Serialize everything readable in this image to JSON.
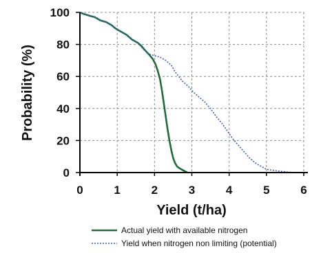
{
  "chart_data": {
    "type": "line",
    "title": "",
    "xlabel": "Yield (t/ha)",
    "ylabel": "Probability (%)",
    "xlim": [
      0,
      6
    ],
    "ylim": [
      0,
      100
    ],
    "xticks": [
      0,
      1,
      2,
      3,
      4,
      5,
      6
    ],
    "yticks": [
      0,
      20,
      40,
      60,
      80,
      100
    ],
    "grid": true,
    "legend_position": "bottom",
    "series": [
      {
        "name": "Actual yield with available nitrogen",
        "color": "#1f6b3a",
        "style": "solid",
        "x": [
          0.0,
          0.1,
          0.25,
          0.4,
          0.55,
          0.7,
          0.85,
          0.95,
          1.1,
          1.25,
          1.4,
          1.55,
          1.65,
          1.72,
          1.8,
          1.88,
          1.95,
          2.02,
          2.08,
          2.15,
          2.2,
          2.25,
          2.3,
          2.35,
          2.4,
          2.45,
          2.5,
          2.55,
          2.6,
          2.65,
          2.72,
          2.8,
          2.88
        ],
        "y": [
          100,
          99,
          98,
          97,
          95,
          94,
          92,
          90,
          88,
          86,
          83,
          81,
          79,
          77,
          75,
          73,
          71,
          68,
          64,
          58,
          51,
          43,
          35,
          27,
          20,
          14,
          9,
          6,
          4,
          3,
          2,
          1,
          0
        ]
      },
      {
        "name": "Yield when nitrogen non limiting (potential)",
        "color": "#3b5fb5",
        "style": "dotted",
        "x": [
          0.0,
          0.1,
          0.25,
          0.4,
          0.55,
          0.7,
          0.85,
          0.95,
          1.1,
          1.25,
          1.4,
          1.55,
          1.7,
          1.85,
          2.0,
          2.15,
          2.3,
          2.45,
          2.55,
          2.65,
          2.75,
          2.9,
          3.05,
          3.2,
          3.35,
          3.5,
          3.65,
          3.8,
          3.95,
          4.1,
          4.25,
          4.4,
          4.55,
          4.7,
          4.85,
          5.0,
          5.15,
          5.3,
          5.5,
          5.7,
          5.9,
          6.0
        ],
        "y": [
          100,
          99,
          98,
          97,
          95,
          94,
          92,
          90,
          88,
          86,
          83,
          81,
          77,
          74,
          73,
          72,
          70,
          67,
          63,
          60,
          57,
          54,
          50,
          47,
          44,
          40,
          35,
          31,
          26,
          21,
          17,
          13,
          9,
          6,
          4,
          2,
          1.5,
          1,
          0.5,
          0,
          0,
          0
        ]
      }
    ]
  }
}
